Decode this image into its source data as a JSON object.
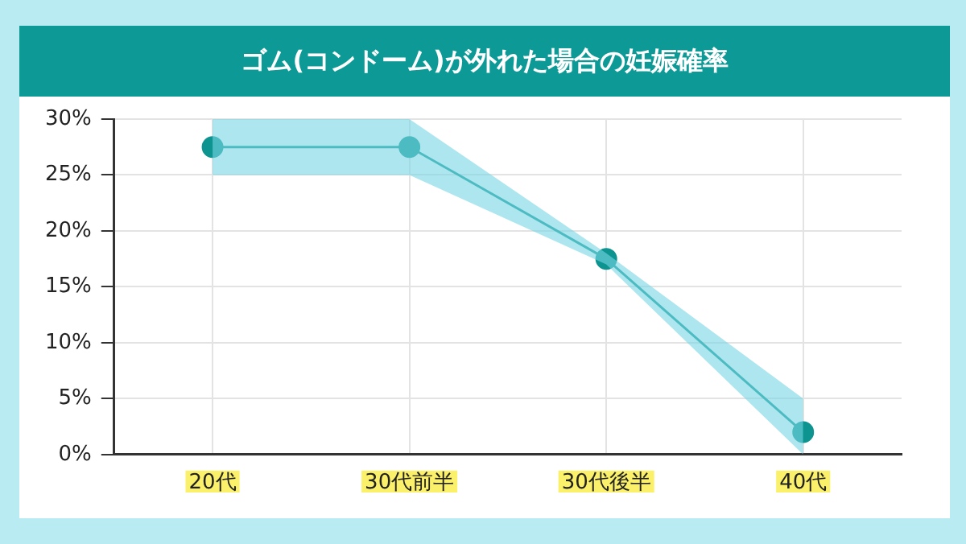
{
  "chart_data": {
    "type": "line",
    "title": "ゴム(コンドーム)が外れた場合の妊娠確率",
    "categories": [
      "20代",
      "30代前半",
      "30代後半",
      "40代"
    ],
    "series": [
      {
        "color": "#0e9490",
        "values": [
          27.5,
          27.5,
          17.5,
          2
        ],
        "lower": [
          25,
          25,
          17,
          0
        ],
        "upper": [
          30,
          30,
          18,
          5
        ]
      }
    ],
    "ylim": [
      0,
      30
    ],
    "yticks": [
      {
        "value": 0,
        "label": "0%"
      },
      {
        "value": 5,
        "label": "5%"
      },
      {
        "value": 10,
        "label": "10%"
      },
      {
        "value": 15,
        "label": "15%"
      },
      {
        "value": 20,
        "label": "20%"
      },
      {
        "value": 25,
        "label": "25%"
      },
      {
        "value": 30,
        "label": "30%"
      }
    ],
    "grid": true,
    "legend": false,
    "marker": "circle",
    "line_style": "solid"
  }
}
